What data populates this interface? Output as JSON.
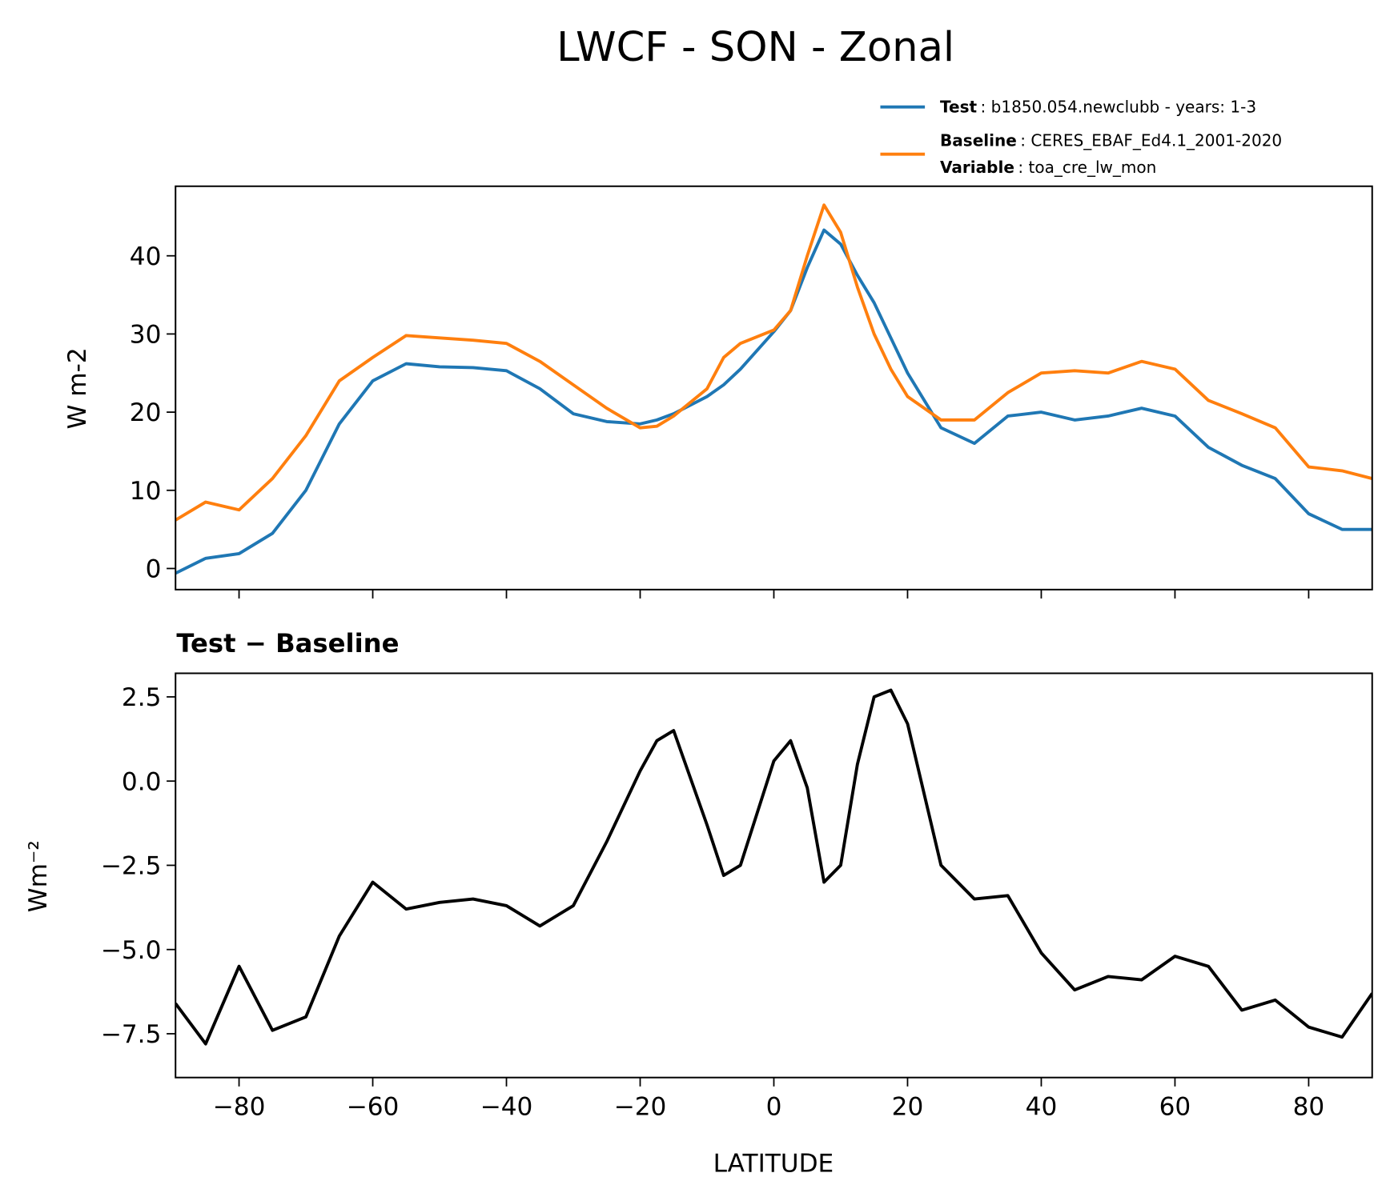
{
  "chart_data": [
    {
      "type": "line",
      "title": "LWCF - SON - Zonal",
      "y_label": "W m-2",
      "x": [
        -89.5,
        -85,
        -80,
        -75,
        -70,
        -65,
        -60,
        -55,
        -50,
        -45,
        -40,
        -35,
        -30,
        -25,
        -20,
        -17.5,
        -15,
        -10,
        -7.5,
        -5,
        0,
        2.5,
        5,
        7.5,
        10,
        12.5,
        15,
        17.5,
        20,
        25,
        30,
        35,
        40,
        45,
        50,
        55,
        60,
        65,
        70,
        75,
        80,
        85,
        89.5
      ],
      "series": [
        {
          "name": "Test",
          "info": ": b1850.054.newclubb - years: 1-3",
          "color": "#1f77b4",
          "values": [
            -0.6,
            1.3,
            1.9,
            4.5,
            10,
            18.5,
            24,
            26.2,
            25.8,
            25.7,
            25.3,
            23,
            19.8,
            18.8,
            18.5,
            19,
            19.8,
            22,
            23.5,
            25.5,
            30.3,
            33,
            38.5,
            43.3,
            41.5,
            37.5,
            34,
            29.5,
            25,
            18,
            16,
            19.5,
            20,
            19,
            19.5,
            20.5,
            19.5,
            15.5,
            13.2,
            11.5,
            7,
            5,
            5
          ]
        },
        {
          "name": "Baseline",
          "info": ": CERES_EBAF_Ed4.1_2001-2020",
          "color": "#ff7f0e",
          "values": [
            6.2,
            8.5,
            7.5,
            11.5,
            17,
            24,
            27,
            29.8,
            29.5,
            29.2,
            28.8,
            26.5,
            23.5,
            20.5,
            18,
            18.2,
            19.5,
            23,
            27,
            28.8,
            30.5,
            33,
            40,
            46.5,
            43,
            36,
            30,
            25.5,
            22,
            19,
            19,
            22.5,
            25,
            25.3,
            25,
            26.5,
            25.5,
            21.5,
            19.8,
            18,
            13,
            12.5,
            11.5
          ]
        }
      ],
      "legend_note": {
        "name": "Variable",
        "info": ": toa_cre_lw_mon"
      },
      "xlim": [
        -89.5,
        89.5
      ],
      "ylim": [
        -2.7,
        48.9
      ],
      "yticks": [
        0,
        10,
        20,
        30,
        40
      ]
    },
    {
      "type": "line",
      "title": "Test − Baseline",
      "y_label": "Wm⁻²",
      "x_label": "LATITUDE",
      "x": [
        -89.5,
        -85,
        -80,
        -75,
        -70,
        -65,
        -60,
        -55,
        -50,
        -45,
        -40,
        -35,
        -30,
        -25,
        -20,
        -17.5,
        -15,
        -10,
        -7.5,
        -5,
        0,
        2.5,
        5,
        7.5,
        10,
        12.5,
        15,
        17.5,
        20,
        25,
        30,
        35,
        40,
        45,
        50,
        55,
        60,
        65,
        70,
        75,
        80,
        85,
        89.5
      ],
      "series": [
        {
          "color": "#000000",
          "values": [
            -6.6,
            -7.8,
            -5.5,
            -7.4,
            -7,
            -4.6,
            -3,
            -3.8,
            -3.6,
            -3.5,
            -3.7,
            -4.3,
            -3.7,
            -1.8,
            0.3,
            1.2,
            1.5,
            -1.3,
            -2.8,
            -2.5,
            0.6,
            1.2,
            -0.2,
            -3,
            -2.5,
            0.5,
            2.5,
            2.7,
            1.7,
            -2.5,
            -3.5,
            -3.4,
            -5.1,
            -6.2,
            -5.8,
            -5.9,
            -5.2,
            -5.5,
            -6.8,
            -6.5,
            -7.3,
            -7.6,
            -6.3
          ]
        }
      ],
      "xlim": [
        -89.5,
        89.5
      ],
      "ylim": [
        -8.8,
        3.2
      ],
      "yticks": [
        2.5,
        {
          "value": 0,
          "label": "0.0"
        },
        {
          "value": -2.5,
          "label": "−2.5"
        },
        {
          "value": -5,
          "label": "−5.0"
        },
        {
          "value": -7.5,
          "label": "−7.5"
        }
      ],
      "xticks": [
        {
          "value": -80,
          "label": "−80"
        },
        {
          "value": -60,
          "label": "−60"
        },
        {
          "value": -40,
          "label": "−40"
        },
        {
          "value": -20,
          "label": "−20"
        },
        0,
        20,
        40,
        60,
        80
      ]
    }
  ]
}
